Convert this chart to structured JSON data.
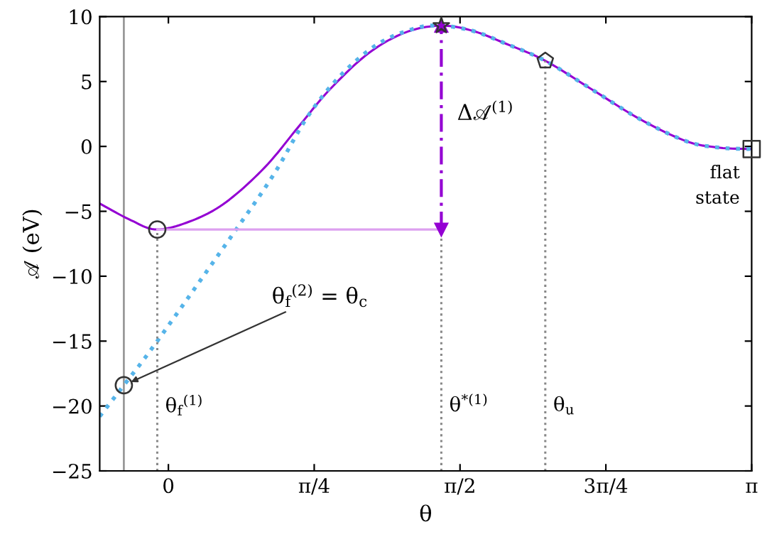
{
  "chart_data": {
    "type": "line",
    "xlabel": "θ",
    "ylabel": "𝒜 (eV)",
    "xlim": [
      -0.37,
      3.1416
    ],
    "ylim": [
      -25,
      10
    ],
    "xticks": [
      {
        "value": 0,
        "label": "0"
      },
      {
        "value": 0.7854,
        "label": "π/4"
      },
      {
        "value": 1.5708,
        "label": "π/2"
      },
      {
        "value": 2.3562,
        "label": "3π/4"
      },
      {
        "value": 3.1416,
        "label": "π"
      }
    ],
    "yticks": [
      -25,
      -20,
      -15,
      -10,
      -5,
      0,
      5,
      10
    ],
    "grid": false,
    "legend": false,
    "series": [
      {
        "color": "#9400d3",
        "line_style": "solid",
        "x": [
          -0.37,
          -0.2,
          -0.06,
          0.13,
          0.31,
          0.52,
          0.7,
          0.87,
          1.08,
          1.28,
          1.47,
          1.64,
          1.82,
          2.03,
          2.28,
          2.54,
          2.79,
          2.97,
          3.1416
        ],
        "values": [
          -4.4,
          -5.7,
          -6.4,
          -5.7,
          -4.3,
          -1.6,
          1.5,
          4.4,
          7.2,
          8.8,
          9.3,
          8.9,
          7.9,
          6.6,
          4.4,
          2.1,
          0.4,
          -0.1,
          -0.2
        ]
      },
      {
        "color": "#56b4e9",
        "line_style": "dotted",
        "x": [
          -0.37,
          -0.24,
          -0.06,
          0.36,
          0.57,
          0.75,
          0.93,
          1.13,
          1.33,
          1.47,
          1.64,
          1.82,
          2.03,
          2.28,
          2.54,
          2.79,
          2.97,
          3.1416
        ],
        "values": [
          -20.8,
          -18.4,
          -15.0,
          -6.5,
          -2.1,
          2.3,
          5.5,
          7.9,
          9.1,
          9.3,
          8.9,
          7.9,
          6.6,
          4.4,
          2.1,
          0.4,
          -0.1,
          -0.2
        ]
      },
      {
        "color": "#dda0f0",
        "line_style": "solid",
        "x": [
          -0.06,
          1.47
        ],
        "values": [
          -6.4,
          -6.4
        ]
      },
      {
        "color": "#888888",
        "line_style": "dotted",
        "x": [
          -0.06,
          -0.06
        ],
        "values": [
          -25,
          -6.4
        ]
      },
      {
        "color": "#888888",
        "line_style": "dotted",
        "x": [
          1.47,
          1.47
        ],
        "values": [
          -25,
          -6.4
        ]
      },
      {
        "color": "#888888",
        "line_style": "dotted",
        "x": [
          2.03,
          2.03
        ],
        "values": [
          -25,
          6.6
        ]
      },
      {
        "color": "#9400d3",
        "line_style": "dashed",
        "x": [
          1.47,
          1.47
        ],
        "values": [
          -6.4,
          9.3
        ]
      },
      {
        "type": "scatter",
        "color": "#333333",
        "marker": "circle",
        "x": [
          -0.06,
          -0.24
        ],
        "values": [
          -6.4,
          -18.4
        ]
      },
      {
        "type": "scatter",
        "color": "#333333",
        "marker": "star",
        "x": [
          1.47
        ],
        "values": [
          9.3
        ]
      },
      {
        "type": "scatter",
        "color": "#333333",
        "x": [
          2.03
        ],
        "values": [
          6.6
        ]
      },
      {
        "type": "scatter",
        "color": "#333333",
        "marker": "square",
        "x": [
          3.1416
        ],
        "values": [
          -0.2
        ]
      }
    ],
    "ref_lines": [
      {
        "axis": "x",
        "value": -0.24,
        "color": "#999999",
        "line_style": "solid"
      }
    ],
    "annotations": [
      {
        "text": "Δ𝒜$^{(1)}$",
        "x": 1.47,
        "y": 2.5
      },
      {
        "text": "θ$_{f}$$^{(2)}$ = θ$_{c}$",
        "x": -0.24,
        "y": -18.4
      },
      {
        "text": "θ$_{f}$$^{(1)}$",
        "x": -0.06,
        "y": -20
      },
      {
        "text": "θ$^{*(1)}$",
        "x": 1.47,
        "y": -20
      },
      {
        "text": "θ$_{u}$",
        "x": 2.03,
        "y": -20
      },
      {
        "text": "flat\nstate",
        "x": 3.1416,
        "y": -0.2
      }
    ]
  }
}
